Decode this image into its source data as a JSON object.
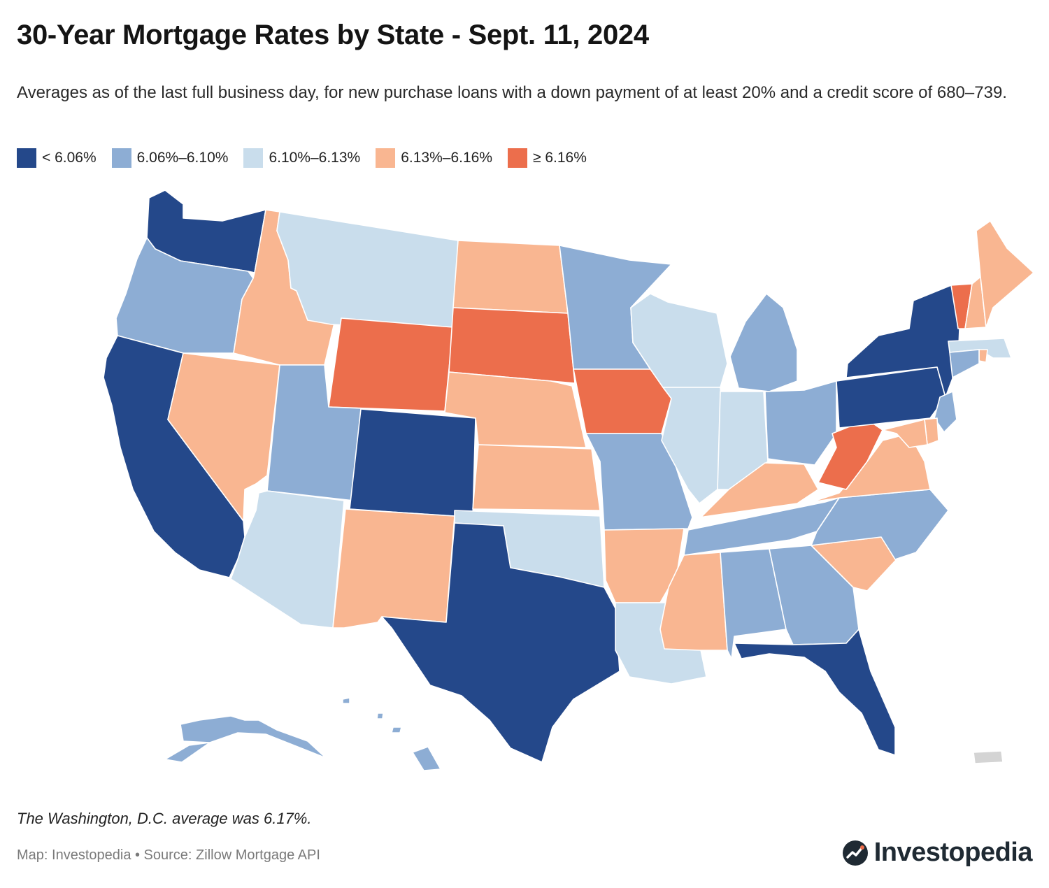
{
  "header": {
    "title": "30-Year Mortgage Rates by State - Sept. 11, 2024",
    "subtitle": "Averages as of the last full business day, for new purchase loans with a down payment of at least 20% and a credit score of 680–739."
  },
  "colors": {
    "bin_1": "#24488a",
    "bin_2": "#8dadd4",
    "bin_3": "#c9ddec",
    "bin_4": "#f9b691",
    "bin_5": "#ec6e4c",
    "no_data": "#d4d4d4"
  },
  "legend": [
    {
      "label": "< 6.06%",
      "color": "#24488a"
    },
    {
      "label": "6.06%–6.10%",
      "color": "#8dadd4"
    },
    {
      "label": "6.10%–6.13%",
      "color": "#c9ddec"
    },
    {
      "label": "6.13%–6.16%",
      "color": "#f9b691"
    },
    {
      "label": "≥ 6.16%",
      "color": "#ec6e4c"
    }
  ],
  "states": [
    {
      "code": "WA",
      "bin": 1
    },
    {
      "code": "OR",
      "bin": 2
    },
    {
      "code": "CA",
      "bin": 1
    },
    {
      "code": "ID",
      "bin": 4
    },
    {
      "code": "NV",
      "bin": 4
    },
    {
      "code": "MT",
      "bin": 3
    },
    {
      "code": "WY",
      "bin": 5
    },
    {
      "code": "UT",
      "bin": 2
    },
    {
      "code": "AZ",
      "bin": 3
    },
    {
      "code": "CO",
      "bin": 1
    },
    {
      "code": "NM",
      "bin": 4
    },
    {
      "code": "ND",
      "bin": 4
    },
    {
      "code": "SD",
      "bin": 5
    },
    {
      "code": "NE",
      "bin": 4
    },
    {
      "code": "KS",
      "bin": 4
    },
    {
      "code": "OK",
      "bin": 3
    },
    {
      "code": "TX",
      "bin": 1
    },
    {
      "code": "MN",
      "bin": 2
    },
    {
      "code": "IA",
      "bin": 5
    },
    {
      "code": "MO",
      "bin": 2
    },
    {
      "code": "AR",
      "bin": 4
    },
    {
      "code": "LA",
      "bin": 3
    },
    {
      "code": "WI",
      "bin": 3
    },
    {
      "code": "IL",
      "bin": 3
    },
    {
      "code": "MI",
      "bin": 2
    },
    {
      "code": "IN",
      "bin": 3
    },
    {
      "code": "OH",
      "bin": 2
    },
    {
      "code": "KY",
      "bin": 4
    },
    {
      "code": "TN",
      "bin": 2
    },
    {
      "code": "MS",
      "bin": 4
    },
    {
      "code": "AL",
      "bin": 2
    },
    {
      "code": "GA",
      "bin": 2
    },
    {
      "code": "FL",
      "bin": 1
    },
    {
      "code": "SC",
      "bin": 4
    },
    {
      "code": "NC",
      "bin": 2
    },
    {
      "code": "VA",
      "bin": 4
    },
    {
      "code": "WV",
      "bin": 5
    },
    {
      "code": "PA",
      "bin": 1
    },
    {
      "code": "NY",
      "bin": 1
    },
    {
      "code": "VT",
      "bin": 5
    },
    {
      "code": "NH",
      "bin": 4
    },
    {
      "code": "ME",
      "bin": 4
    },
    {
      "code": "MA",
      "bin": 3
    },
    {
      "code": "RI",
      "bin": 4
    },
    {
      "code": "CT",
      "bin": 2
    },
    {
      "code": "NJ",
      "bin": 2
    },
    {
      "code": "DE",
      "bin": 4
    },
    {
      "code": "MD",
      "bin": 4
    },
    {
      "code": "AK",
      "bin": 2
    },
    {
      "code": "HI",
      "bin": 2
    },
    {
      "code": "PR",
      "bin": 0
    }
  ],
  "footer": {
    "note": "The Washington, D.C. average was 6.17%.",
    "credit": "Map: Investopedia • Source: Zillow Mortgage API",
    "brand": "Investopedia",
    "brand_icon": "investopedia-logo-icon"
  }
}
